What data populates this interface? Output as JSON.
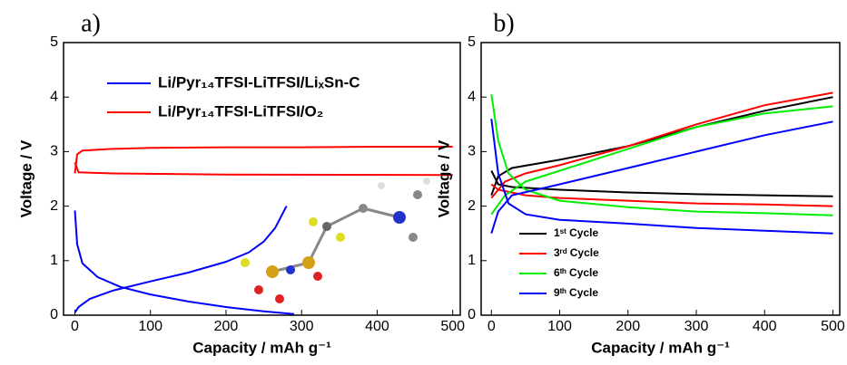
{
  "chart_data": [
    {
      "type": "line",
      "title": "a)",
      "xlabel": "Capacity  / mAh g⁻¹",
      "ylabel": "Voltage / V",
      "xlim": [
        -15,
        510
      ],
      "ylim": [
        0,
        5
      ],
      "xticks": [
        0,
        100,
        200,
        300,
        400,
        500
      ],
      "yticks": [
        0,
        1,
        2,
        3,
        4,
        5
      ],
      "legend": "upper left",
      "series": [
        {
          "name": "Li/Pyr₁₄TFSI-LiTFSI/LiₓSn-C",
          "color": "#0000ff",
          "segments": [
            {
              "x": [
                0,
                5,
                20,
                50,
                100,
                150,
                200,
                230,
                250,
                265,
                280
              ],
              "values": [
                0.05,
                0.15,
                0.3,
                0.45,
                0.62,
                0.78,
                0.98,
                1.15,
                1.35,
                1.6,
                2.0
              ]
            },
            {
              "x": [
                0,
                3,
                10,
                30,
                60,
                100,
                150,
                200,
                250,
                290
              ],
              "values": [
                1.92,
                1.3,
                0.95,
                0.7,
                0.52,
                0.38,
                0.25,
                0.15,
                0.07,
                0.02
              ]
            }
          ]
        },
        {
          "name": "Li/Pyr₁₄TFSI-LiTFSI/O₂",
          "color": "#ff0000",
          "segments": [
            {
              "x": [
                0,
                3,
                10,
                50,
                100,
                200,
                300,
                400,
                500
              ],
              "values": [
                2.6,
                2.95,
                3.02,
                3.05,
                3.07,
                3.08,
                3.08,
                3.09,
                3.09
              ]
            },
            {
              "x": [
                0,
                5,
                50,
                200,
                500
              ],
              "values": [
                2.8,
                2.62,
                2.6,
                2.58,
                2.57
              ]
            }
          ]
        }
      ]
    },
    {
      "type": "line",
      "title": "b)",
      "xlabel": "Capacity  / mAh g⁻¹",
      "ylabel": "Voltage / V",
      "xlim": [
        -15,
        510
      ],
      "ylim": [
        0,
        5
      ],
      "xticks": [
        0,
        100,
        200,
        300,
        400,
        500
      ],
      "yticks": [
        0,
        1,
        2,
        3,
        4,
        5
      ],
      "legend": "lower left",
      "series": [
        {
          "name": "1ˢᵗ Cycle",
          "color": "#000000",
          "segments": [
            {
              "x": [
                0,
                10,
                30,
                100,
                200,
                300,
                400,
                500
              ],
              "values": [
                2.65,
                2.4,
                2.35,
                2.3,
                2.25,
                2.22,
                2.2,
                2.18
              ]
            },
            {
              "x": [
                0,
                10,
                30,
                100,
                200,
                300,
                400,
                500
              ],
              "values": [
                2.2,
                2.55,
                2.7,
                2.85,
                3.1,
                3.45,
                3.75,
                4.0
              ]
            }
          ]
        },
        {
          "name": "3ʳᵈ Cycle",
          "color": "#ff0000",
          "segments": [
            {
              "x": [
                0,
                10,
                50,
                100,
                200,
                300,
                400,
                500
              ],
              "values": [
                2.4,
                2.3,
                2.2,
                2.15,
                2.1,
                2.05,
                2.03,
                2.0
              ]
            },
            {
              "x": [
                0,
                20,
                50,
                100,
                200,
                300,
                400,
                500
              ],
              "values": [
                2.15,
                2.45,
                2.6,
                2.75,
                3.1,
                3.5,
                3.85,
                4.08
              ]
            }
          ]
        },
        {
          "name": "6ᵗʰ Cycle",
          "color": "#00ee00",
          "segments": [
            {
              "x": [
                0,
                10,
                25,
                50,
                100,
                200,
                300,
                400,
                500
              ],
              "values": [
                4.05,
                3.2,
                2.6,
                2.3,
                2.1,
                1.98,
                1.9,
                1.87,
                1.83
              ]
            },
            {
              "x": [
                0,
                20,
                50,
                100,
                200,
                300,
                400,
                500
              ],
              "values": [
                1.85,
                2.2,
                2.45,
                2.65,
                3.05,
                3.45,
                3.7,
                3.83
              ]
            }
          ]
        },
        {
          "name": "9ᵗʰ Cycle",
          "color": "#0000ff",
          "segments": [
            {
              "x": [
                0,
                10,
                25,
                50,
                100,
                200,
                300,
                400,
                500
              ],
              "values": [
                3.6,
                2.6,
                2.05,
                1.85,
                1.75,
                1.68,
                1.6,
                1.55,
                1.5
              ]
            },
            {
              "x": [
                0,
                10,
                30,
                100,
                200,
                300,
                400,
                500
              ],
              "values": [
                1.5,
                1.9,
                2.2,
                2.4,
                2.7,
                3.0,
                3.3,
                3.55
              ]
            }
          ]
        }
      ]
    }
  ]
}
